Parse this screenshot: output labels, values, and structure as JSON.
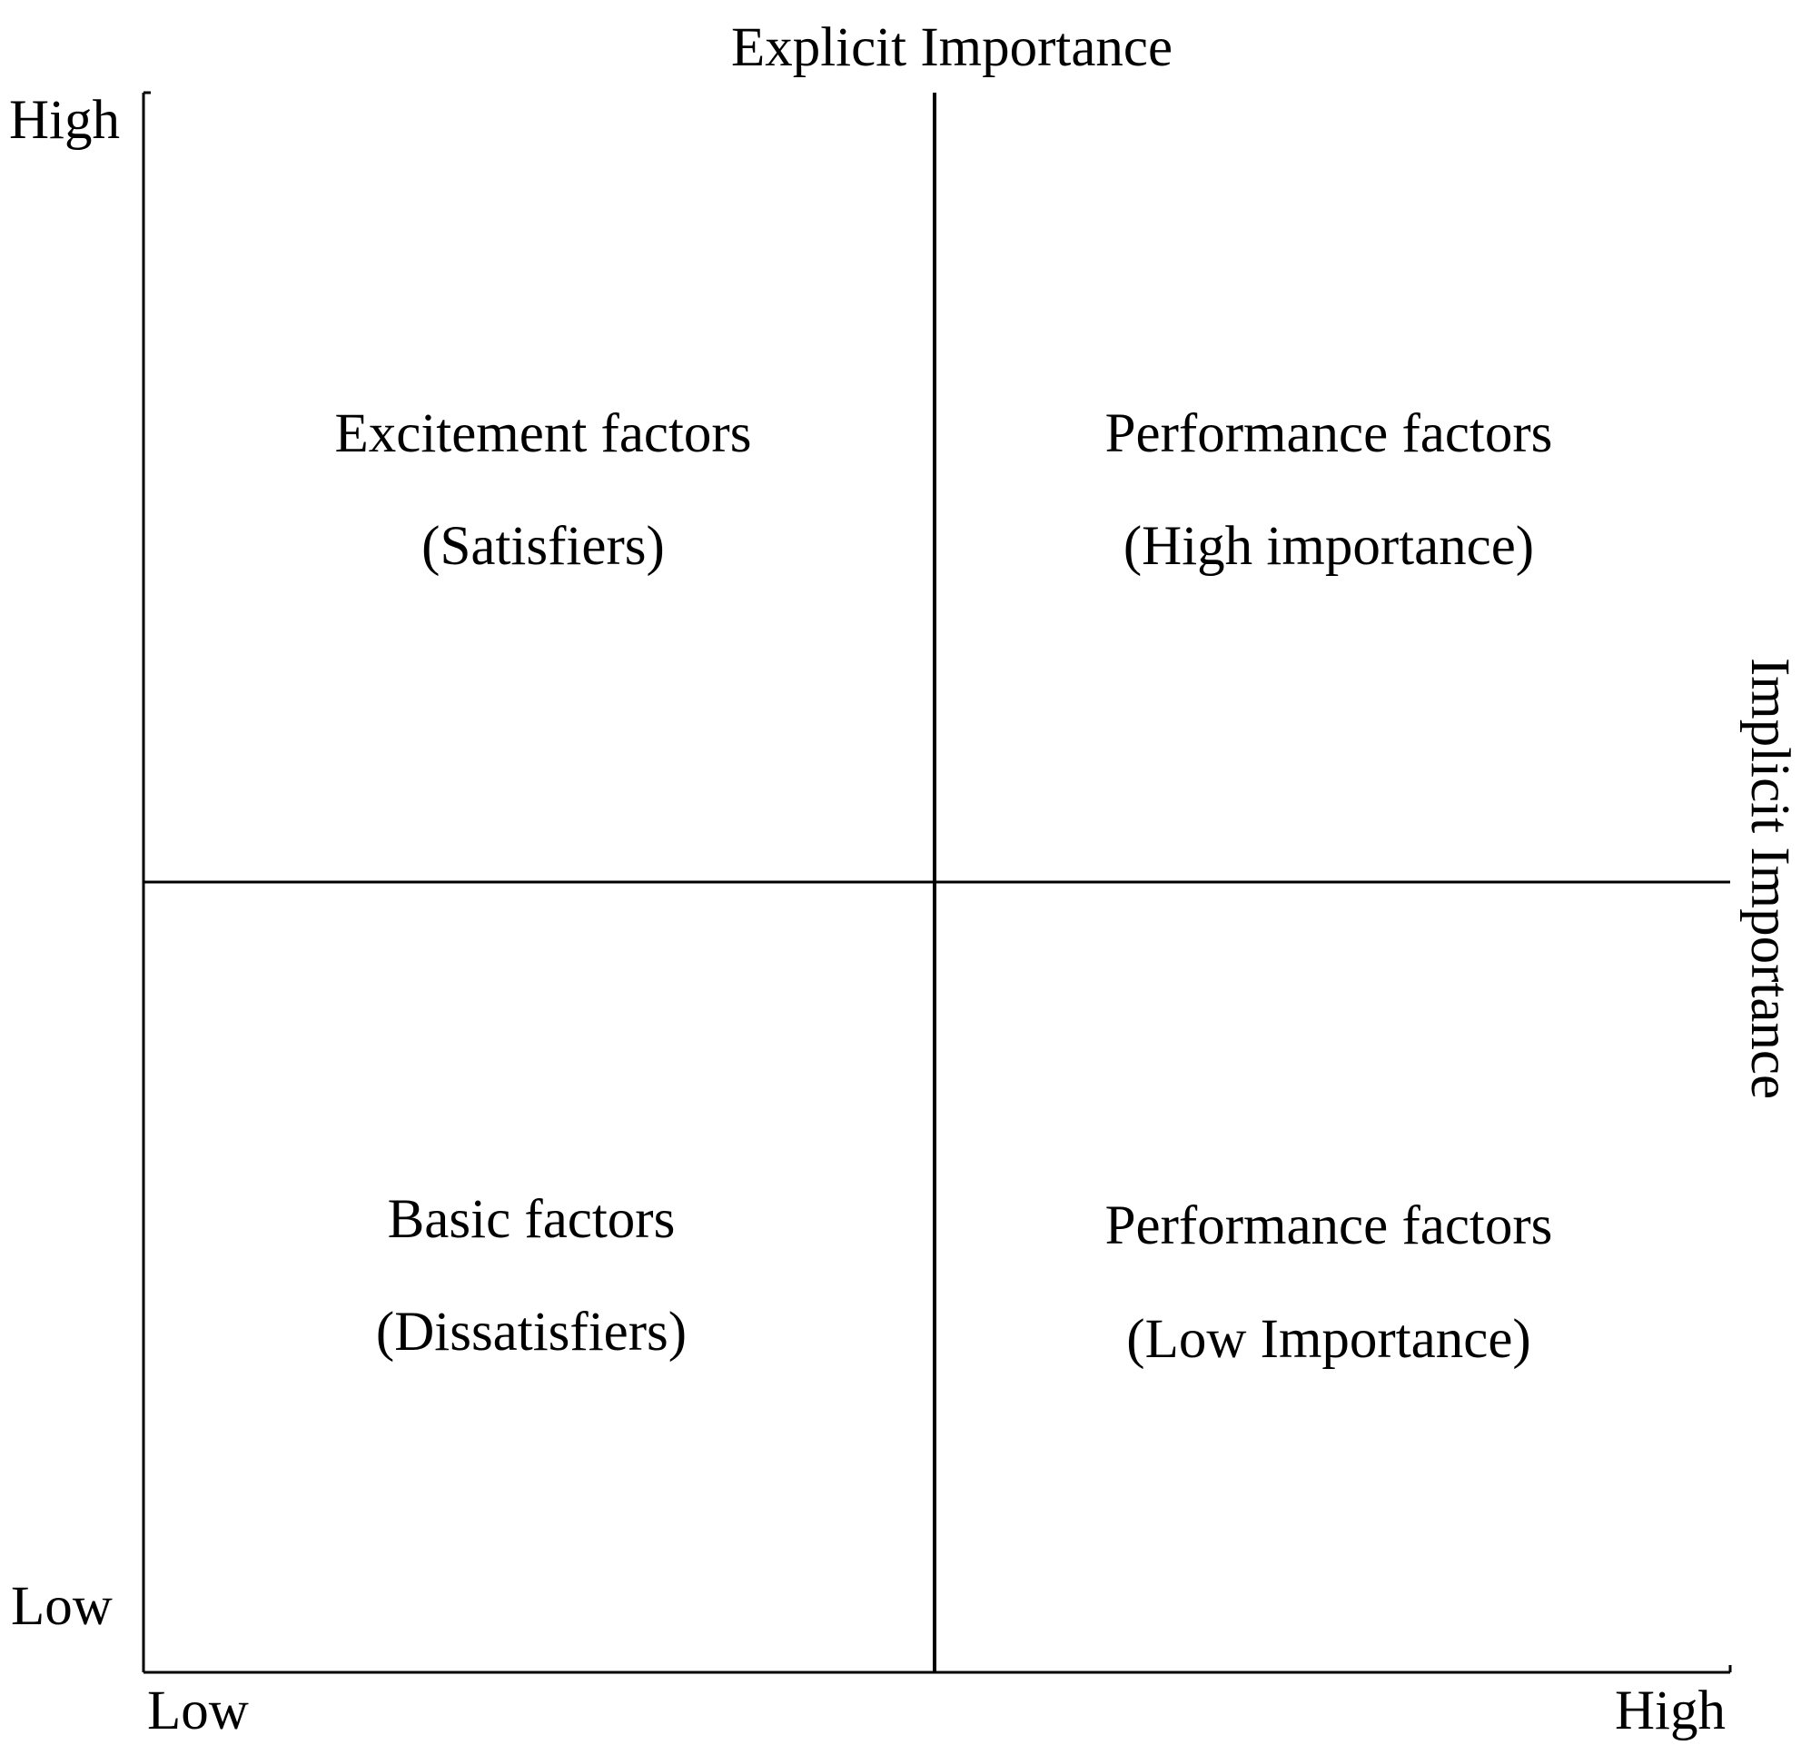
{
  "title": "Explicit Importance",
  "right_axis_label": "Implicit Importance",
  "y_axis": {
    "high": "High",
    "low": "Low"
  },
  "x_axis": {
    "low": "Low",
    "high": "High"
  },
  "quadrants": [
    {
      "label": "Excitement factors",
      "sublabel": "(Satisfiers)"
    },
    {
      "label": "Performance factors",
      "sublabel": "(High importance)"
    },
    {
      "label": "Basic factors",
      "sublabel": "(Dissatisfiers)"
    },
    {
      "label": "Performance factors",
      "sublabel": "(Low Importance)"
    }
  ]
}
